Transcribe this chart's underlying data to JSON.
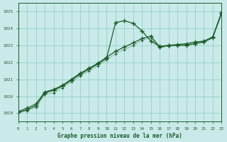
{
  "title": "Graphe pression niveau de la mer (hPa)",
  "bg_color": "#caeaea",
  "plot_bg_color": "#caeaea",
  "grid_color": "#88ccbb",
  "line_color": "#1a5c2a",
  "xlim": [
    0,
    23
  ],
  "ylim": [
    1018.5,
    1025.5
  ],
  "xticks": [
    0,
    1,
    2,
    3,
    4,
    5,
    6,
    7,
    8,
    9,
    10,
    11,
    12,
    13,
    14,
    15,
    16,
    17,
    18,
    19,
    20,
    21,
    22,
    23
  ],
  "yticks": [
    1019,
    1020,
    1021,
    1022,
    1023,
    1024,
    1025
  ],
  "series1_x": [
    0,
    1,
    2,
    3,
    4,
    5,
    6,
    7,
    8,
    9,
    10,
    11,
    12,
    13,
    14,
    15,
    16,
    17,
    18,
    19,
    20,
    21,
    22,
    23
  ],
  "series1_y": [
    1019.1,
    1019.3,
    1019.55,
    1020.25,
    1020.4,
    1020.65,
    1021.0,
    1021.35,
    1021.65,
    1021.95,
    1022.3,
    1022.65,
    1022.9,
    1023.15,
    1023.4,
    1023.55,
    1022.9,
    1023.0,
    1023.05,
    1023.1,
    1023.2,
    1023.25,
    1023.5,
    1024.95
  ],
  "series1_style": "solid",
  "series1_marker": "+",
  "series2_x": [
    0,
    1,
    2,
    3,
    4,
    5,
    6,
    7,
    8,
    9,
    10,
    11,
    12,
    13,
    14,
    15,
    16,
    17,
    18,
    19,
    20,
    21,
    22,
    23
  ],
  "series2_y": [
    1019.05,
    1019.2,
    1019.45,
    1020.2,
    1020.35,
    1020.6,
    1020.95,
    1021.3,
    1021.6,
    1021.9,
    1022.25,
    1024.35,
    1024.45,
    1024.3,
    1023.85,
    1023.25,
    1022.95,
    1023.0,
    1023.0,
    1023.0,
    1023.1,
    1023.2,
    1023.45,
    1024.9
  ],
  "series2_style": "solid",
  "series2_marker": "+",
  "series3_x": [
    0,
    1,
    2,
    3,
    4,
    5,
    6,
    7,
    8,
    9,
    10,
    11,
    12,
    13,
    14,
    15,
    16,
    17,
    18,
    19,
    20,
    21,
    22,
    23
  ],
  "series3_y": [
    1019.05,
    1019.15,
    1019.35,
    1020.1,
    1020.2,
    1020.5,
    1020.85,
    1021.2,
    1021.5,
    1021.8,
    1022.15,
    1022.5,
    1022.75,
    1023.0,
    1023.3,
    1023.45,
    1022.85,
    1022.95,
    1023.0,
    1023.05,
    1023.15,
    1023.2,
    1023.45,
    1024.85
  ],
  "series3_style": "dotted",
  "series3_marker": "+"
}
